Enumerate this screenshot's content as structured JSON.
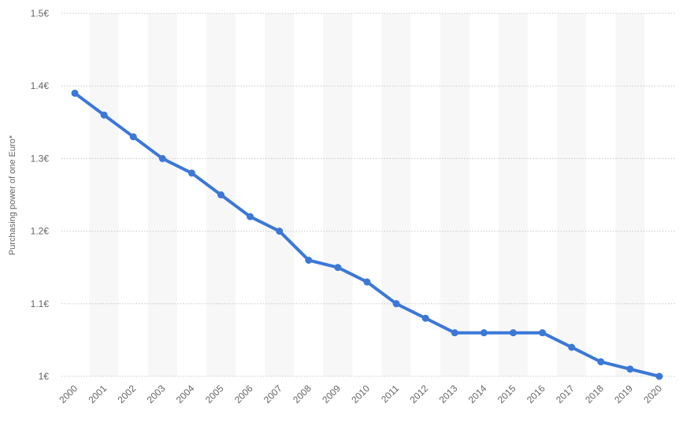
{
  "chart_data": {
    "type": "line",
    "title": "",
    "xlabel": "",
    "ylabel": "Purchasing power of one Euro*",
    "categories": [
      "2000",
      "2001",
      "2002",
      "2003",
      "2004",
      "2005",
      "2006",
      "2007",
      "2008",
      "2009",
      "2010",
      "2011",
      "2012",
      "2013",
      "2014",
      "2015",
      "2016",
      "2017",
      "2018",
      "2019",
      "2020"
    ],
    "series": [
      {
        "values": [
          1.39,
          1.36,
          1.33,
          1.3,
          1.28,
          1.25,
          1.22,
          1.2,
          1.16,
          1.15,
          1.13,
          1.1,
          1.08,
          1.06,
          1.06,
          1.06,
          1.06,
          1.04,
          1.02,
          1.01,
          1.0
        ]
      }
    ],
    "ylim": [
      1.0,
      1.5
    ],
    "yticks": [
      1.0,
      1.1,
      1.2,
      1.3,
      1.4,
      1.5
    ],
    "ytick_labels": [
      "1€",
      "1.1€",
      "1.2€",
      "1.3€",
      "1.4€",
      "1.5€"
    ],
    "grid": true,
    "colors": {
      "line": "#3b78d8",
      "band": "#f7f7f7",
      "grid": "#c8c8c8",
      "text": "#666666"
    }
  }
}
